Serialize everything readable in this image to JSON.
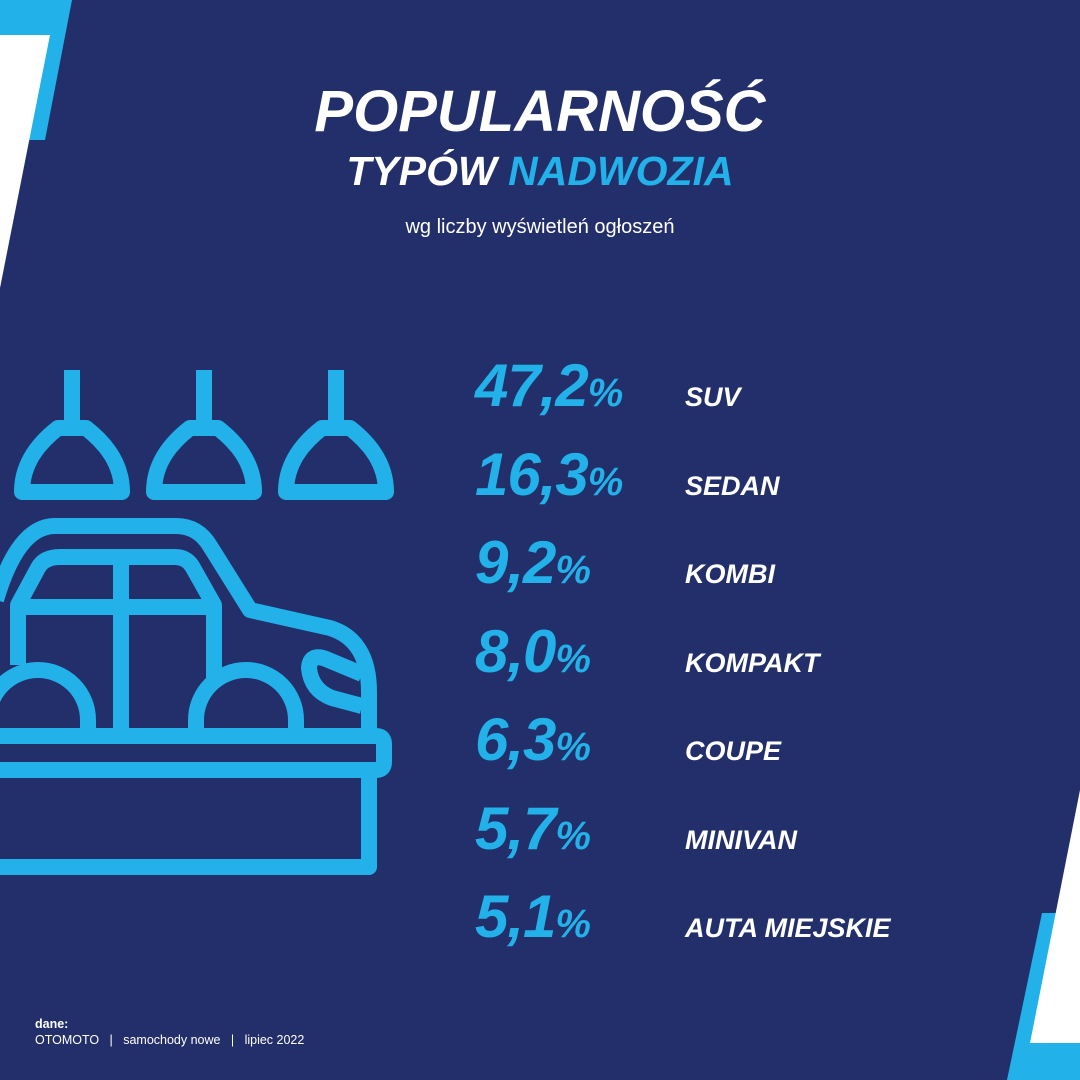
{
  "header": {
    "title_line1": "POPULARNOŚĆ",
    "title_line2_white": "TYPÓW",
    "title_line2_accent": "NADWOZIA",
    "subtitle": "wg liczby wyświetleń ogłoszeń"
  },
  "colors": {
    "background": "#232f6b",
    "accent": "#22b1e8",
    "text": "#ffffff"
  },
  "icon": "car-showroom-icon",
  "chart_data": {
    "type": "table",
    "title": "POPULARNOŚĆ TYPÓW NADWOZIA",
    "subtitle": "wg liczby wyświetleń ogłoszeń",
    "unit": "%",
    "rows": [
      {
        "value": "47,2",
        "label": "SUV"
      },
      {
        "value": "16,3",
        "label": "SEDAN"
      },
      {
        "value": "9,2",
        "label": "KOMBI"
      },
      {
        "value": "8,0",
        "label": "KOMPAKT"
      },
      {
        "value": "6,3",
        "label": "COUPE"
      },
      {
        "value": "5,7",
        "label": "MINIVAN"
      },
      {
        "value": "5,1",
        "label": "AUTA MIEJSKIE"
      }
    ]
  },
  "footer": {
    "label": "dane:",
    "source": "OTOMOTO   |   samochody nowe   |   lipiec 2022"
  }
}
